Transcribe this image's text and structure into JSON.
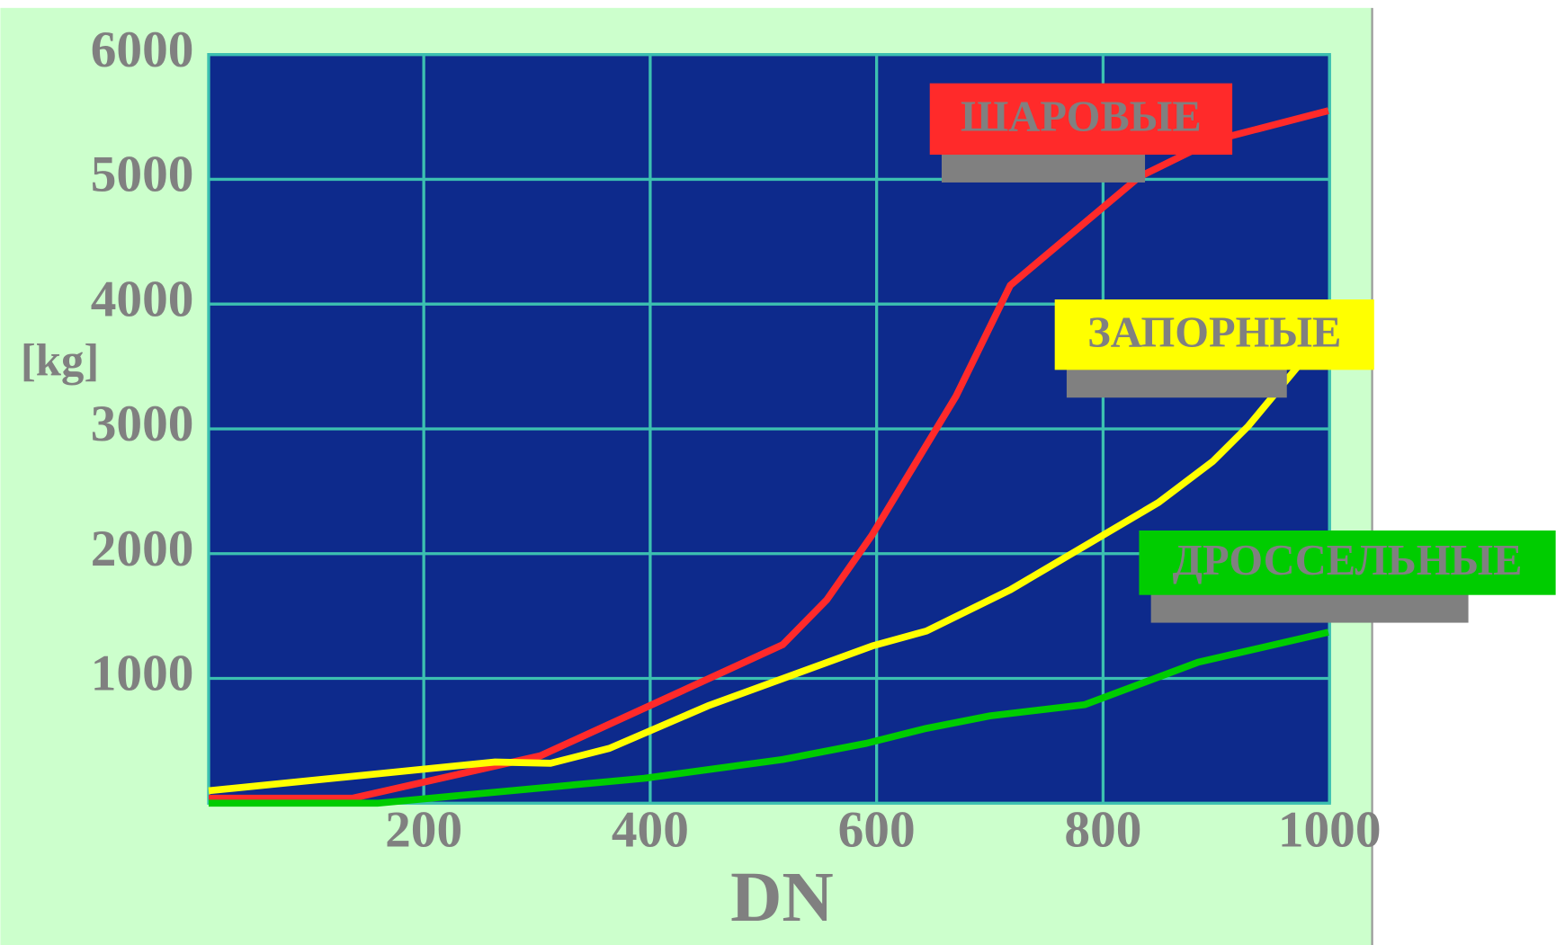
{
  "chart_data": {
    "type": "line",
    "x_label": "DN",
    "y_label": "[kg]",
    "xlim": [
      10,
      1000
    ],
    "xticks": [
      200,
      400,
      600,
      800,
      1000
    ],
    "ylim": [
      0,
      6000
    ],
    "yticks": [
      1000,
      2000,
      3000,
      4000,
      5000,
      6000
    ],
    "grid": true,
    "series": [
      {
        "name": "ШАРОВЫЕ",
        "color": "#ff2a2a",
        "x": [
          10,
          137,
          303,
          517,
          556,
          596,
          670,
          718,
          832,
          897,
          999
        ],
        "values": [
          40,
          40,
          380,
          1270,
          1630,
          2150,
          3260,
          4150,
          5020,
          5310,
          5550
        ]
      },
      {
        "name": "ЗАПОРНЫЕ",
        "color": "#ffff00",
        "x": [
          10,
          263,
          312,
          364,
          451,
          596,
          644,
          718,
          849,
          897,
          928,
          972
        ],
        "values": [
          100,
          330,
          320,
          440,
          780,
          1260,
          1380,
          1710,
          2410,
          2740,
          3020,
          3500
        ]
      },
      {
        "name": "ДРОССЕЛЬНЫЕ",
        "color": "#00cc00",
        "x": [
          10,
          159,
          395,
          517,
          591,
          644,
          700,
          784,
          884,
          999
        ],
        "values": [
          0,
          0,
          200,
          350,
          480,
          600,
          700,
          790,
          1130,
          1370
        ]
      }
    ]
  }
}
